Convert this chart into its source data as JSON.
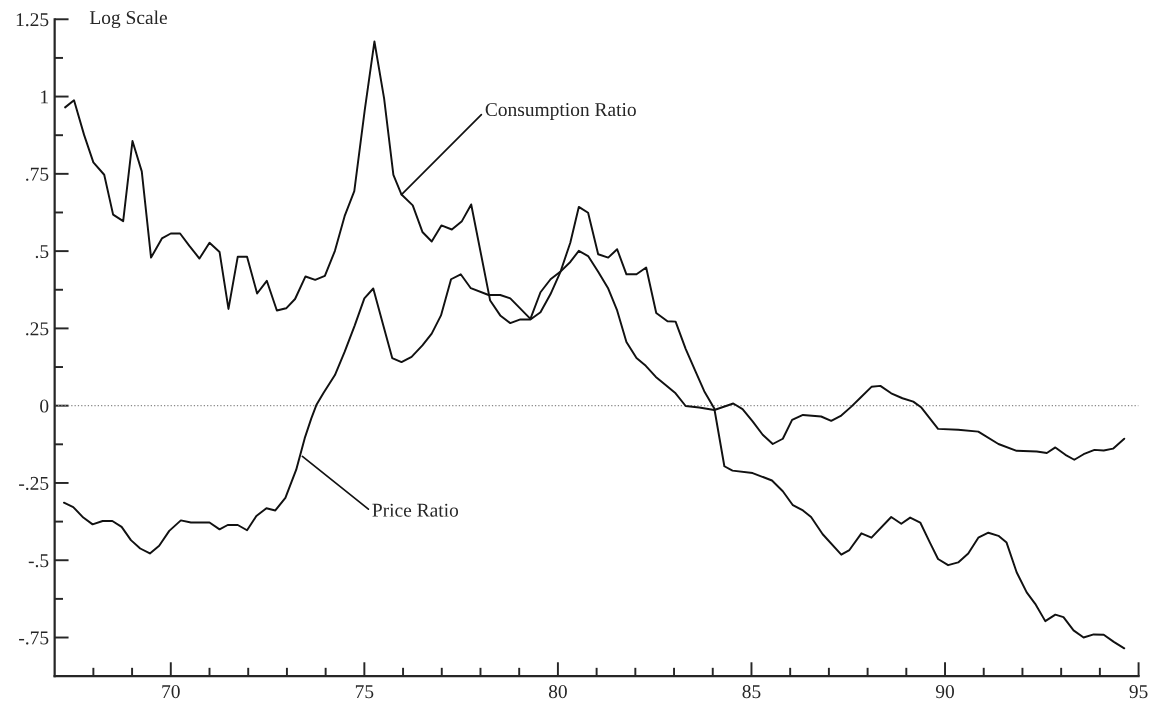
{
  "chart_data": {
    "type": "line",
    "xlim": [
      67,
      95
    ],
    "xticks": [
      {
        "value": 68,
        "label": null
      },
      {
        "value": 69,
        "label": null
      },
      70,
      {
        "value": 71,
        "label": null
      },
      {
        "value": 72,
        "label": null
      },
      {
        "value": 73,
        "label": null
      },
      {
        "value": 74,
        "label": null
      },
      75,
      {
        "value": 76,
        "label": null
      },
      {
        "value": 77,
        "label": null
      },
      {
        "value": 78,
        "label": null
      },
      {
        "value": 79,
        "label": null
      },
      80,
      {
        "value": 81,
        "label": null
      },
      {
        "value": 82,
        "label": null
      },
      {
        "value": 83,
        "label": null
      },
      {
        "value": 84,
        "label": null
      },
      85,
      {
        "value": 86,
        "label": null
      },
      {
        "value": 87,
        "label": null
      },
      {
        "value": 88,
        "label": null
      },
      {
        "value": 89,
        "label": null
      },
      90,
      {
        "value": 91,
        "label": null
      },
      {
        "value": 92,
        "label": null
      },
      {
        "value": 93,
        "label": null
      },
      {
        "value": 94,
        "label": null
      },
      95
    ],
    "ylim": [
      -0.875,
      1.25
    ],
    "yticks": [
      {
        "value": -0.75,
        "label": "-.75"
      },
      {
        "value": -0.625,
        "label": null
      },
      {
        "value": -0.5,
        "label": "-.5"
      },
      {
        "value": -0.375,
        "label": null
      },
      {
        "value": -0.25,
        "label": "-.25"
      },
      {
        "value": -0.125,
        "label": null
      },
      0,
      {
        "value": 0.125,
        "label": null
      },
      {
        "value": 0.25,
        "label": ".25"
      },
      {
        "value": 0.375,
        "label": null
      },
      {
        "value": 0.5,
        "label": ".5"
      },
      {
        "value": 0.625,
        "label": null
      },
      {
        "value": 0.75,
        "label": ".75"
      },
      {
        "value": 0.875,
        "label": null
      },
      1,
      {
        "value": 1.125,
        "label": null
      },
      1.25
    ],
    "grid": false,
    "legend": false,
    "marker": "none",
    "line_style": "solid",
    "ref_lines": [
      {
        "axis": "y",
        "value": 0,
        "color": "#888888",
        "line_style": "dotted"
      }
    ],
    "annotations": [
      "Log Scale",
      {
        "text": "Consumption Ratio",
        "x": 75.96,
        "y": 0.683
      },
      {
        "text": "Price Ratio",
        "x": 73.4,
        "y": -0.164
      }
    ],
    "series": [
      {
        "color": "#111111",
        "x": [
          67.27,
          67.5,
          67.76,
          68.0,
          68.28,
          68.51,
          68.77,
          69.01,
          69.25,
          69.49,
          69.77,
          70.0,
          70.24,
          70.48,
          70.74,
          71.0,
          71.26,
          71.49,
          71.73,
          71.97,
          72.23,
          72.48,
          72.74,
          72.98,
          73.21,
          73.48,
          73.73,
          73.98,
          74.24,
          74.49,
          74.74,
          75.01,
          75.26,
          75.51,
          75.75,
          75.96,
          76.25,
          76.5,
          76.74,
          76.99,
          77.26,
          77.52,
          77.76,
          78.25,
          78.51,
          78.77,
          79.03,
          79.29,
          79.55,
          79.81,
          80.06,
          80.32,
          80.54,
          80.78,
          81.04,
          81.3,
          81.53,
          81.77,
          82.03,
          82.28,
          82.54,
          82.83,
          83.04,
          83.3,
          83.56,
          83.78,
          84.04,
          84.3,
          84.51,
          85.03,
          85.53,
          85.81,
          86.07,
          86.33,
          86.54,
          86.84,
          87.32,
          87.53,
          87.84,
          88.1,
          88.61,
          88.87,
          89.1,
          89.36,
          89.61,
          89.82,
          90.08,
          90.34,
          90.6,
          90.86,
          91.12,
          91.38,
          91.59,
          91.85,
          92.11,
          92.33,
          92.59,
          92.85,
          93.06,
          93.32,
          93.58,
          93.84,
          94.1,
          94.36,
          94.63
        ],
        "values": [
          0.965,
          0.988,
          0.876,
          0.787,
          0.747,
          0.618,
          0.597,
          0.856,
          0.758,
          0.479,
          0.541,
          0.557,
          0.557,
          0.517,
          0.476,
          0.527,
          0.497,
          0.313,
          0.482,
          0.482,
          0.363,
          0.404,
          0.308,
          0.315,
          0.345,
          0.418,
          0.407,
          0.42,
          0.501,
          0.613,
          0.694,
          0.956,
          1.178,
          0.994,
          0.747,
          0.683,
          0.648,
          0.562,
          0.531,
          0.583,
          0.57,
          0.597,
          0.651,
          0.34,
          0.292,
          0.267,
          0.279,
          0.279,
          0.302,
          0.361,
          0.431,
          0.527,
          0.643,
          0.624,
          0.49,
          0.479,
          0.506,
          0.425,
          0.425,
          0.447,
          0.3,
          0.273,
          0.272,
          0.184,
          0.109,
          0.047,
          -0.009,
          -0.196,
          -0.21,
          -0.218,
          -0.242,
          -0.277,
          -0.322,
          -0.339,
          -0.36,
          -0.416,
          -0.482,
          -0.467,
          -0.413,
          -0.427,
          -0.36,
          -0.382,
          -0.362,
          -0.378,
          -0.443,
          -0.496,
          -0.516,
          -0.507,
          -0.478,
          -0.427,
          -0.411,
          -0.421,
          -0.443,
          -0.539,
          -0.604,
          -0.641,
          -0.697,
          -0.676,
          -0.684,
          -0.727,
          -0.75,
          -0.74,
          -0.741,
          -0.764,
          -0.785
        ]
      },
      {
        "color": "#111111",
        "x": [
          67.24,
          67.48,
          67.74,
          67.98,
          68.24,
          68.49,
          68.73,
          68.97,
          69.21,
          69.46,
          69.7,
          69.96,
          70.26,
          70.52,
          71.0,
          71.26,
          71.47,
          71.73,
          71.97,
          72.21,
          72.47,
          72.7,
          72.96,
          73.24,
          73.46,
          73.63,
          73.76,
          73.94,
          74.24,
          74.49,
          74.75,
          75.0,
          75.23,
          75.49,
          75.72,
          75.96,
          76.22,
          76.5,
          76.74,
          76.98,
          77.24,
          77.49,
          77.75,
          78.21,
          78.51,
          78.77,
          79.29,
          79.55,
          79.81,
          80.06,
          80.32,
          80.54,
          80.78,
          81.04,
          81.3,
          81.53,
          81.77,
          82.03,
          82.27,
          82.53,
          82.79,
          83.04,
          83.3,
          83.65,
          84.04,
          84.53,
          84.77,
          85.03,
          85.29,
          85.55,
          85.81,
          86.05,
          86.33,
          86.8,
          87.06,
          87.32,
          87.58,
          87.84,
          88.1,
          88.33,
          88.61,
          88.9,
          89.18,
          89.39,
          89.82,
          90.34,
          90.86,
          91.38,
          91.85,
          92.37,
          92.63,
          92.85,
          93.11,
          93.34,
          93.58,
          93.86,
          94.1,
          94.34,
          94.63
        ],
        "values": [
          -0.314,
          -0.328,
          -0.362,
          -0.384,
          -0.373,
          -0.373,
          -0.392,
          -0.435,
          -0.462,
          -0.478,
          -0.453,
          -0.405,
          -0.371,
          -0.378,
          -0.378,
          -0.4,
          -0.386,
          -0.386,
          -0.403,
          -0.357,
          -0.332,
          -0.339,
          -0.298,
          -0.207,
          -0.105,
          -0.041,
          0.002,
          0.04,
          0.099,
          0.174,
          0.259,
          0.347,
          0.379,
          0.259,
          0.154,
          0.141,
          0.158,
          0.195,
          0.233,
          0.292,
          0.409,
          0.425,
          0.38,
          0.358,
          0.358,
          0.347,
          0.281,
          0.367,
          0.409,
          0.433,
          0.465,
          0.501,
          0.484,
          0.433,
          0.379,
          0.308,
          0.206,
          0.154,
          0.129,
          0.093,
          0.066,
          0.04,
          -0.001,
          -0.006,
          -0.014,
          0.007,
          -0.011,
          -0.051,
          -0.094,
          -0.124,
          -0.107,
          -0.046,
          -0.03,
          -0.035,
          -0.049,
          -0.032,
          -0.003,
          0.029,
          0.061,
          0.064,
          0.04,
          0.024,
          0.013,
          -0.006,
          -0.075,
          -0.078,
          -0.084,
          -0.124,
          -0.146,
          -0.148,
          -0.153,
          -0.135,
          -0.159,
          -0.175,
          -0.157,
          -0.143,
          -0.145,
          -0.139,
          -0.107
        ]
      }
    ]
  }
}
